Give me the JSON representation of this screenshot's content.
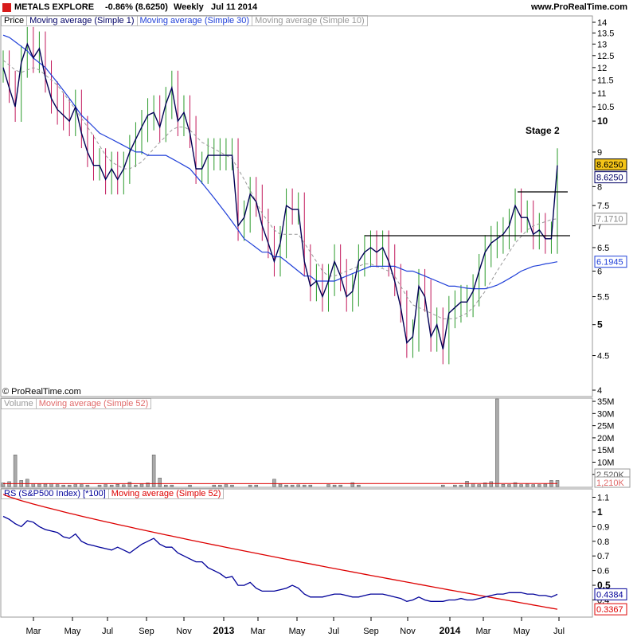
{
  "header": {
    "title": "METALS EXPLORE",
    "change": "-0.86% (8.6250)",
    "period": "Weekly",
    "date": "Jul 11 2014",
    "site": "www.ProRealTime.com"
  },
  "price_panel": {
    "tabs": [
      "Price",
      "Moving average (Simple 1)",
      "Moving average (Simple 30)",
      "Moving average (Simple 10)"
    ],
    "tab_colors": [
      "#000000",
      "#000066",
      "#1f3fd8",
      "#999999"
    ],
    "y_ticks": [
      "14",
      "13.5",
      "13",
      "12.5",
      "12",
      "11.5",
      "11",
      "10.5",
      "10",
      "9",
      "8",
      "7.5",
      "7",
      "6.5",
      "6",
      "5.5",
      "5",
      "4.5",
      "4"
    ],
    "y_tick_values": [
      14,
      13.5,
      13,
      12.5,
      12,
      11.5,
      11,
      10.5,
      10,
      9,
      8,
      7.5,
      7,
      6.5,
      6,
      5.5,
      5,
      4.5,
      4
    ],
    "bold_ticks": [
      "10",
      "5"
    ],
    "value_labels": [
      {
        "text": "8.6250",
        "value": 8.625,
        "style": "gold"
      },
      {
        "text": "8.6250",
        "value": 8.625,
        "style": "navy",
        "offset": 1
      },
      {
        "text": "7.1710",
        "value": 7.171,
        "style": "grey"
      },
      {
        "text": "6.1945",
        "value": 6.1945,
        "style": "blue"
      }
    ],
    "annotation": "Stage 2",
    "copyright": "© ProRealTime.com"
  },
  "volume_panel": {
    "tabs": [
      "Volume",
      "Moving average (Simple 52)"
    ],
    "tab_colors": [
      "#999999",
      "#e06a6a"
    ],
    "y_ticks": [
      "35M",
      "30M",
      "25M",
      "20M",
      "15M",
      "10M",
      "5M"
    ],
    "y_tick_values": [
      35,
      30,
      25,
      20,
      15,
      10,
      5
    ],
    "value_labels": [
      {
        "text": "2,520K",
        "value": 2.52
      },
      {
        "text": "1,210K",
        "value": 1.21
      }
    ]
  },
  "rs_panel": {
    "tabs": [
      "RS (S&P500 Index) [*100]",
      "Moving average (Simple 52)"
    ],
    "tab_colors": [
      "#000099",
      "#dd0000"
    ],
    "y_ticks": [
      "1.1",
      "1",
      "0.9",
      "0.8",
      "0.7",
      "0.6",
      "0.5",
      "0.4"
    ],
    "y_tick_values": [
      1.1,
      1.0,
      0.9,
      0.8,
      0.7,
      0.6,
      0.5,
      0.4
    ],
    "bold_ticks": [
      "1",
      "0.5"
    ],
    "value_labels": [
      {
        "text": "0.4384",
        "value": 0.4384,
        "color": "#000099"
      },
      {
        "text": "0.3367",
        "value": 0.3367,
        "color": "#dd0000"
      }
    ]
  },
  "x_axis": {
    "labels": [
      "Mar",
      "May",
      "Jul",
      "Sep",
      "Nov",
      "2013",
      "Mar",
      "May",
      "Jul",
      "Sep",
      "Nov",
      "2014",
      "Mar",
      "May",
      "Jul"
    ],
    "bold": [
      "2013",
      "2014"
    ]
  },
  "colors": {
    "up": "#2a9a2a",
    "down": "#c2185b",
    "ma1": "#000055",
    "ma30": "#1f3fd8",
    "ma10": "#999999",
    "rs": "#000099",
    "rs_ma": "#dd0000",
    "vol": "#999999"
  },
  "chart_data": {
    "type": "line",
    "title": "METALS EXPLORE",
    "x_start": "2012-02",
    "x_end": "2014-07",
    "y_scale": "log",
    "ylim": [
      4,
      14
    ],
    "grid": false,
    "series": [
      {
        "name": "Moving average (Simple 1)",
        "values": [
          12.0,
          11.2,
          10.5,
          12.2,
          13.0,
          12.4,
          12.8,
          11.6,
          10.8,
          10.4,
          10.2,
          10.0,
          10.5,
          9.6,
          9.0,
          8.6,
          8.6,
          8.2,
          8.5,
          8.2,
          8.5,
          9.0,
          9.4,
          9.8,
          10.2,
          10.3,
          9.8,
          10.6,
          11.2,
          10.0,
          10.3,
          9.6,
          8.5,
          8.5,
          8.9,
          8.9,
          8.9,
          8.9,
          8.9,
          7.0,
          7.2,
          7.8,
          7.6,
          7.0,
          6.6,
          6.2,
          6.6,
          7.5,
          7.4,
          7.4,
          6.2,
          5.7,
          5.8,
          5.5,
          5.8,
          6.2,
          5.9,
          5.5,
          5.6,
          6.2,
          6.4,
          6.5,
          6.4,
          6.5,
          6.2,
          5.8,
          5.3,
          4.7,
          4.8,
          5.7,
          5.5,
          4.8,
          5.0,
          4.6,
          5.2,
          5.3,
          5.4,
          5.4,
          5.6,
          6.0,
          6.4,
          6.6,
          6.7,
          6.8,
          7.0,
          7.5,
          7.2,
          7.2,
          6.8,
          6.9,
          6.7,
          6.7,
          8.6
        ]
      },
      {
        "name": "Moving average (Simple 30)",
        "values": [
          13.4,
          13.3,
          13.1,
          12.9,
          12.7,
          12.4,
          12.2,
          12.0,
          11.7,
          11.4,
          11.1,
          10.8,
          10.5,
          10.2,
          10.0,
          9.8,
          9.6,
          9.5,
          9.4,
          9.3,
          9.2,
          9.1,
          9.0,
          9.0,
          8.9,
          8.9,
          8.9,
          8.9,
          8.8,
          8.7,
          8.6,
          8.5,
          8.3,
          8.1,
          7.9,
          7.7,
          7.5,
          7.3,
          7.1,
          6.9,
          6.7,
          6.6,
          6.5,
          6.4,
          6.4,
          6.3,
          6.3,
          6.2,
          6.1,
          6.0,
          5.9,
          5.9,
          5.8,
          5.8,
          5.8,
          5.8,
          5.85,
          5.9,
          5.95,
          6.0,
          6.05,
          6.1,
          6.1,
          6.1,
          6.1,
          6.1,
          6.05,
          6.0,
          6.0,
          5.95,
          5.9,
          5.85,
          5.8,
          5.75,
          5.7,
          5.7,
          5.68,
          5.66,
          5.65,
          5.65,
          5.65,
          5.68,
          5.72,
          5.78,
          5.85,
          5.92,
          6.0,
          6.05,
          6.1,
          6.12,
          6.15,
          6.17,
          6.1945
        ]
      },
      {
        "name": "Moving average (Simple 10)",
        "values": [
          12.3,
          12.1,
          11.9,
          11.8,
          11.9,
          12.0,
          11.9,
          11.7,
          11.5,
          11.3,
          11.0,
          10.7,
          10.4,
          10.1,
          9.8,
          9.5,
          9.2,
          8.9,
          8.7,
          8.6,
          8.5,
          8.5,
          8.6,
          8.7,
          8.9,
          9.1,
          9.3,
          9.5,
          9.7,
          9.8,
          9.8,
          9.7,
          9.5,
          9.3,
          9.2,
          9.1,
          9.0,
          8.9,
          8.8,
          8.5,
          8.2,
          7.9,
          7.6,
          7.3,
          7.1,
          6.9,
          6.8,
          6.8,
          6.8,
          6.8,
          6.6,
          6.4,
          6.2,
          6.0,
          5.9,
          5.9,
          5.95,
          6.0,
          6.05,
          6.1,
          6.15,
          6.15,
          6.1,
          6.05,
          6.0,
          5.9,
          5.7,
          5.5,
          5.35,
          5.3,
          5.25,
          5.2,
          5.15,
          5.1,
          5.1,
          5.1,
          5.15,
          5.2,
          5.3,
          5.45,
          5.6,
          5.8,
          6.0,
          6.2,
          6.4,
          6.6,
          6.75,
          6.9,
          7.0,
          7.05,
          7.1,
          7.15,
          7.171
        ]
      }
    ],
    "volume": {
      "ylim": [
        0,
        36
      ],
      "unit": "M"
    },
    "rs": {
      "ylim": [
        0.37,
        1.13
      ]
    }
  }
}
